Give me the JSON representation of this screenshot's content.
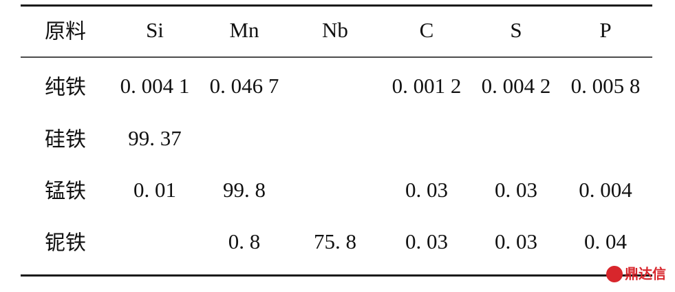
{
  "table": {
    "header": [
      "原料",
      "Si",
      "Mn",
      "Nb",
      "C",
      "S",
      "P"
    ],
    "rows": [
      [
        "纯铁",
        "0. 004 1",
        "0. 046 7",
        null,
        "0. 001 2",
        "0. 004 2",
        "0. 005 8"
      ],
      [
        "硅铁",
        "99. 37",
        null,
        null,
        null,
        null,
        null
      ],
      [
        "锰铁",
        "0. 01",
        "99. 8",
        null,
        "0. 03",
        "0. 03",
        "0. 004"
      ],
      [
        "铌铁",
        null,
        "0. 8",
        "75. 8",
        "0. 03",
        "0. 03",
        "0. 04"
      ]
    ]
  },
  "watermark": "鼎达信"
}
